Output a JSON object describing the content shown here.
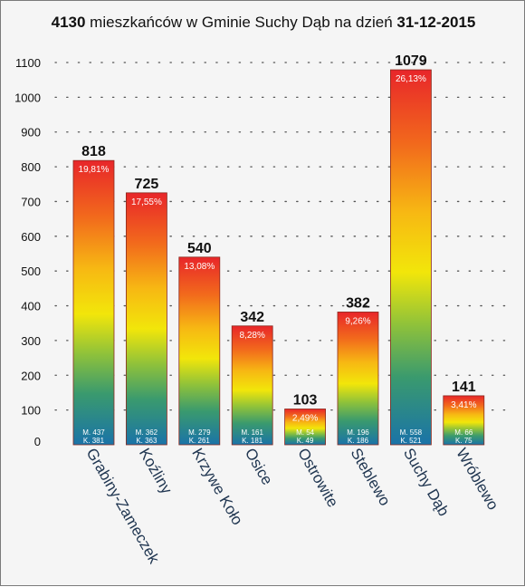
{
  "chart_data": {
    "type": "bar",
    "title_prefix": "4130",
    "title_middle": " mieszkańców w Gminie Suchy Dąb na dzień ",
    "title_suffix": "31-12-2015",
    "ylim": [
      0,
      1100
    ],
    "yticks": [
      0,
      100,
      200,
      300,
      400,
      500,
      600,
      700,
      800,
      900,
      1000,
      1100
    ],
    "grid": "dotted",
    "categories": [
      "Grabiny-Zameczek",
      "Koźliny",
      "Krzywe Koło",
      "Osice",
      "Ostrowite",
      "Steblewo",
      "Suchy Dąb",
      "Wróblewo"
    ],
    "values": [
      818,
      725,
      540,
      342,
      103,
      382,
      1079,
      141
    ],
    "value_labels": [
      "818",
      "725",
      "540",
      "342",
      "103",
      "382",
      "1079",
      "141"
    ],
    "percent_labels": [
      "19,81%",
      "17,55%",
      "13,08%",
      "8,28%",
      "2,49%",
      "9,26%",
      "26,13%",
      "3,41%"
    ],
    "male_labels": [
      "M. 437",
      "M. 362",
      "M. 279",
      "M. 161",
      "M. 54",
      "M. 196",
      "M. 558",
      "M. 66"
    ],
    "female_labels": [
      "K. 381",
      "K. 363",
      "K. 261",
      "K. 181",
      "K. 49",
      "K. 186",
      "K. 521",
      "K. 75"
    ]
  }
}
